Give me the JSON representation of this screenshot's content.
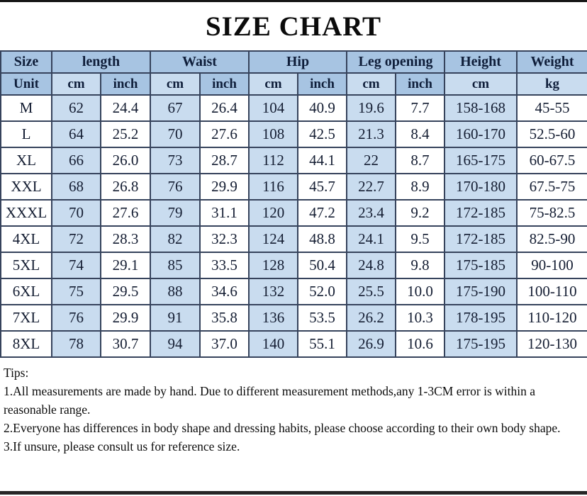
{
  "chart_data": {
    "type": "table",
    "title": "SIZE CHART",
    "header_groups": [
      {
        "label": "Size",
        "span": 1
      },
      {
        "label": "length",
        "span": 2
      },
      {
        "label": "Waist",
        "span": 2
      },
      {
        "label": "Hip",
        "span": 2
      },
      {
        "label": "Leg opening",
        "span": 2
      },
      {
        "label": "Height",
        "span": 1
      },
      {
        "label": "Weight",
        "span": 1
      }
    ],
    "unit_row": [
      "Unit",
      "cm",
      "inch",
      "cm",
      "inch",
      "cm",
      "inch",
      "cm",
      "inch",
      "cm",
      "kg"
    ],
    "rows": [
      [
        "M",
        "62",
        "24.4",
        "67",
        "26.4",
        "104",
        "40.9",
        "19.6",
        "7.7",
        "158-168",
        "45-55"
      ],
      [
        "L",
        "64",
        "25.2",
        "70",
        "27.6",
        "108",
        "42.5",
        "21.3",
        "8.4",
        "160-170",
        "52.5-60"
      ],
      [
        "XL",
        "66",
        "26.0",
        "73",
        "28.7",
        "112",
        "44.1",
        "22",
        "8.7",
        "165-175",
        "60-67.5"
      ],
      [
        "XXL",
        "68",
        "26.8",
        "76",
        "29.9",
        "116",
        "45.7",
        "22.7",
        "8.9",
        "170-180",
        "67.5-75"
      ],
      [
        "XXXL",
        "70",
        "27.6",
        "79",
        "31.1",
        "120",
        "47.2",
        "23.4",
        "9.2",
        "172-185",
        "75-82.5"
      ],
      [
        "4XL",
        "72",
        "28.3",
        "82",
        "32.3",
        "124",
        "48.8",
        "24.1",
        "9.5",
        "172-185",
        "82.5-90"
      ],
      [
        "5XL",
        "74",
        "29.1",
        "85",
        "33.5",
        "128",
        "50.4",
        "24.8",
        "9.8",
        "175-185",
        "90-100"
      ],
      [
        "6XL",
        "75",
        "29.5",
        "88",
        "34.6",
        "132",
        "52.0",
        "25.5",
        "10.0",
        "175-190",
        "100-110"
      ],
      [
        "7XL",
        "76",
        "29.9",
        "91",
        "35.8",
        "136",
        "53.5",
        "26.2",
        "10.3",
        "178-195",
        "110-120"
      ],
      [
        "8XL",
        "78",
        "30.7",
        "94",
        "37.0",
        "140",
        "55.1",
        "26.9",
        "10.6",
        "175-195",
        "120-130"
      ]
    ]
  },
  "tips": {
    "heading": "Tips:",
    "items": [
      "1.All measurements are made by hand. Due to different measurement methods,any 1-3CM error is within a reasonable range.",
      "2.Everyone has differences in body shape and dressing habits, please choose according to their own body shape.",
      "3.If unsure, please consult us for reference size."
    ]
  },
  "colors": {
    "header_blue": "#a7c4e2",
    "light_blue": "#c9dcef",
    "border": "#36435c",
    "data_text": "#141d32",
    "title_text": "#0b0b0b"
  }
}
